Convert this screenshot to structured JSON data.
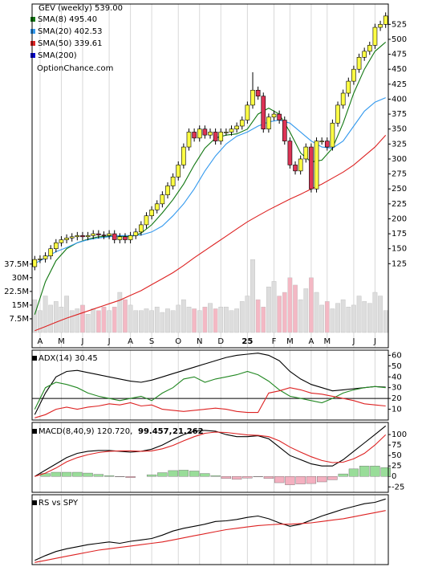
{
  "chart_data": [
    {
      "type": "candlestick",
      "title": "GEV (weekly) 539.00",
      "watermark": "OptionChance.com",
      "xlim": [
        -0.5,
        66.5
      ],
      "open": [
        120,
        132,
        133,
        138,
        150,
        160,
        165,
        168,
        170,
        172,
        170,
        172,
        175,
        173,
        172,
        175,
        165,
        170,
        165,
        172,
        178,
        190,
        205,
        215,
        225,
        240,
        255,
        270,
        290,
        320,
        345,
        335,
        350,
        340,
        345,
        330,
        345,
        345,
        350,
        355,
        365,
        390,
        415,
        405,
        350,
        370,
        375,
        365,
        330,
        290,
        280,
        300,
        320,
        250,
        330,
        330,
        320,
        360,
        390,
        410,
        430,
        450,
        470,
        480,
        490,
        520,
        525
      ],
      "high": [
        138,
        139,
        144,
        156,
        166,
        171,
        174,
        176,
        178,
        178,
        178,
        181,
        181,
        179,
        181,
        181,
        176,
        176,
        178,
        184,
        196,
        211,
        221,
        231,
        246,
        261,
        276,
        296,
        326,
        351,
        351,
        356,
        356,
        351,
        351,
        351,
        351,
        356,
        361,
        371,
        396,
        445,
        421,
        411,
        376,
        381,
        381,
        371,
        336,
        296,
        306,
        326,
        326,
        336,
        336,
        336,
        366,
        396,
        416,
        436,
        456,
        476,
        486,
        496,
        526,
        531,
        545
      ],
      "low": [
        114,
        126,
        127,
        132,
        144,
        154,
        159,
        162,
        164,
        164,
        164,
        166,
        167,
        166,
        166,
        159,
        159,
        159,
        159,
        166,
        172,
        184,
        199,
        209,
        219,
        234,
        249,
        264,
        284,
        314,
        329,
        329,
        334,
        334,
        324,
        324,
        339,
        339,
        344,
        349,
        359,
        384,
        399,
        344,
        344,
        364,
        359,
        324,
        284,
        274,
        274,
        294,
        244,
        244,
        324,
        314,
        314,
        354,
        384,
        404,
        424,
        444,
        464,
        474,
        484,
        514,
        519
      ],
      "close": [
        132,
        133,
        138,
        150,
        160,
        165,
        168,
        170,
        172,
        170,
        172,
        175,
        173,
        172,
        175,
        165,
        170,
        165,
        172,
        178,
        190,
        205,
        215,
        225,
        240,
        255,
        270,
        290,
        320,
        345,
        335,
        350,
        340,
        345,
        330,
        345,
        345,
        350,
        355,
        365,
        390,
        415,
        405,
        350,
        370,
        375,
        365,
        330,
        290,
        280,
        300,
        320,
        250,
        330,
        330,
        320,
        360,
        390,
        410,
        430,
        450,
        470,
        480,
        490,
        520,
        525,
        539
      ],
      "up_color": "#ffff44",
      "down_color": "#dd3355",
      "ylim": [
        10,
        559
      ],
      "yticks": [
        525,
        500,
        475,
        450,
        425,
        400,
        375,
        350,
        325,
        300,
        275,
        250,
        225,
        200,
        175,
        150,
        125
      ],
      "xticks": [
        {
          "value": 1,
          "label": "A"
        },
        {
          "value": 5,
          "label": "M"
        },
        {
          "value": 9,
          "label": "J"
        },
        {
          "value": 14,
          "label": "J"
        },
        {
          "value": 18,
          "label": "A"
        },
        {
          "value": 22,
          "label": "S"
        },
        {
          "value": 27,
          "label": "O"
        },
        {
          "value": 31,
          "label": "N"
        },
        {
          "value": 35,
          "label": "D"
        },
        {
          "value": 40,
          "label": "25"
        },
        {
          "value": 45,
          "label": "F"
        },
        {
          "value": 48,
          "label": "M"
        },
        {
          "value": 52,
          "label": "A"
        },
        {
          "value": 55,
          "label": "M"
        },
        {
          "value": 60,
          "label": "J"
        },
        {
          "value": 64,
          "label": "J"
        }
      ],
      "line_x": [
        0,
        2,
        4,
        6,
        8,
        10,
        12,
        14,
        16,
        18,
        20,
        22,
        24,
        26,
        28,
        30,
        32,
        34,
        36,
        38,
        40,
        42,
        44,
        46,
        48,
        50,
        52,
        54,
        56,
        58,
        60,
        62,
        64,
        66
      ],
      "series": [
        {
          "name": "SMA(8) 495.40",
          "color": "#117711",
          "values": [
            40,
            95,
            130,
            150,
            160,
            166,
            170,
            171,
            171,
            170,
            176,
            190,
            210,
            232,
            258,
            290,
            318,
            335,
            340,
            342,
            350,
            375,
            385,
            375,
            345,
            310,
            295,
            298,
            318,
            360,
            410,
            450,
            480,
            495.4
          ]
        },
        {
          "name": "SMA(20) 402.53",
          "color": "#3399ee",
          "values": [
            125,
            135,
            145,
            152,
            160,
            165,
            168,
            170,
            172,
            172,
            173,
            178,
            188,
            205,
            225,
            250,
            280,
            305,
            325,
            338,
            345,
            355,
            362,
            365,
            360,
            345,
            330,
            320,
            318,
            330,
            355,
            380,
            395,
            402.53
          ]
        },
        {
          "name": "SMA(50) 339.61",
          "color": "#dd2222",
          "values": [
            13,
            20,
            27,
            34,
            40,
            46,
            52,
            58,
            64,
            72,
            80,
            90,
            100,
            110,
            122,
            135,
            147,
            159,
            171,
            183,
            195,
            205,
            215,
            224,
            233,
            241,
            250,
            258,
            268,
            278,
            290,
            305,
            320,
            339.61
          ]
        },
        {
          "name": "SMA(200)",
          "color": "#0000cc"
        }
      ],
      "volume": {
        "up_color": "#dddddd",
        "down_color": "#f4b8c4",
        "ylim": [
          0,
          180000000
        ],
        "yticks": [
          {
            "value": 37500000,
            "label": "37.5M"
          },
          {
            "value": 30000000,
            "label": "30M"
          },
          {
            "value": 22500000,
            "label": "22.5M"
          },
          {
            "value": 15000000,
            "label": "15M"
          },
          {
            "value": 7500000,
            "label": "7.5M"
          }
        ],
        "values": [
          18000000,
          12000000,
          20000000,
          15000000,
          17000000,
          14000000,
          20000000,
          12000000,
          13000000,
          15000000,
          10000000,
          13000000,
          12000000,
          14000000,
          12000000,
          14000000,
          22000000,
          18000000,
          15000000,
          12000000,
          12000000,
          13000000,
          12000000,
          14000000,
          11000000,
          13000000,
          12000000,
          15000000,
          18000000,
          14000000,
          13000000,
          12000000,
          14000000,
          16000000,
          13000000,
          14000000,
          14000000,
          12000000,
          13000000,
          17000000,
          20000000,
          40000000,
          18000000,
          14000000,
          25000000,
          28000000,
          20000000,
          22000000,
          30000000,
          26000000,
          18000000,
          24000000,
          30000000,
          22000000,
          15000000,
          17000000,
          13000000,
          16000000,
          18000000,
          14000000,
          15000000,
          20000000,
          17000000,
          16000000,
          22000000,
          20000000,
          12000000
        ]
      }
    },
    {
      "type": "line",
      "title": "ADX(14) 30.45",
      "xlim": [
        -0.5,
        66.5
      ],
      "ylim": [
        0,
        64
      ],
      "yticks": [
        60,
        50,
        40,
        30,
        20,
        10
      ],
      "threshold": 20,
      "x": [
        0,
        2,
        4,
        6,
        8,
        10,
        12,
        14,
        16,
        18,
        20,
        22,
        24,
        26,
        28,
        30,
        32,
        34,
        36,
        38,
        40,
        42,
        44,
        46,
        48,
        50,
        52,
        54,
        56,
        58,
        60,
        62,
        64,
        66
      ],
      "series": [
        {
          "color": "#000000",
          "values": [
            5,
            25,
            40,
            45,
            46,
            44,
            42,
            40,
            38,
            36,
            35,
            37,
            40,
            43,
            46,
            49,
            52,
            55,
            58,
            60,
            61,
            62,
            60,
            55,
            45,
            38,
            33,
            30,
            27,
            28,
            29,
            30,
            31,
            30.45
          ]
        },
        {
          "color": "#228822",
          "values": [
            10,
            30,
            35,
            33,
            30,
            25,
            22,
            20,
            18,
            20,
            22,
            18,
            25,
            30,
            38,
            40,
            35,
            38,
            40,
            42,
            45,
            42,
            36,
            28,
            22,
            20,
            18,
            16,
            20,
            25,
            28,
            30,
            31,
            30
          ]
        },
        {
          "color": "#dd2222",
          "values": [
            2,
            5,
            10,
            12,
            10,
            12,
            13,
            15,
            14,
            16,
            13,
            14,
            10,
            9,
            8,
            9,
            10,
            11,
            10,
            8,
            7,
            7,
            25,
            27,
            30,
            28,
            25,
            24,
            22,
            20,
            18,
            15,
            14,
            13
          ]
        }
      ]
    },
    {
      "type": "macd",
      "title": "MACD(8,40,9) 120.720,",
      "signal_label": "99.457,",
      "hist_label": "21.262",
      "xlim": [
        -0.5,
        66.5
      ],
      "ylim": [
        -36,
        127
      ],
      "yticks": [
        100,
        75,
        50,
        25,
        0,
        -25
      ],
      "x": [
        0,
        2,
        4,
        6,
        8,
        10,
        12,
        14,
        16,
        18,
        20,
        22,
        24,
        26,
        28,
        30,
        32,
        34,
        36,
        38,
        40,
        42,
        44,
        46,
        48,
        50,
        52,
        54,
        56,
        58,
        60,
        62,
        64,
        66
      ],
      "series": [
        {
          "color": "#000000",
          "values": [
            0,
            15,
            30,
            45,
            55,
            60,
            62,
            62,
            60,
            58,
            60,
            65,
            75,
            88,
            100,
            108,
            110,
            108,
            100,
            95,
            95,
            97,
            90,
            70,
            50,
            40,
            30,
            25,
            25,
            40,
            60,
            80,
            100,
            120.72
          ]
        },
        {
          "color": "#dd2222",
          "values": [
            0,
            8,
            20,
            35,
            45,
            52,
            57,
            60,
            61,
            61,
            60,
            61,
            66,
            74,
            85,
            95,
            103,
            106,
            105,
            102,
            99,
            98,
            95,
            85,
            70,
            58,
            47,
            38,
            33,
            34,
            42,
            55,
            75,
            99.457
          ]
        }
      ],
      "histogram": {
        "pos_color": "#99dd99",
        "neg_color": "#f4b0c0",
        "label_color": "#3355bb",
        "signal_color": "#dd2222",
        "values": [
          0,
          7,
          10,
          10,
          10,
          8,
          5,
          2,
          -1,
          -3,
          0,
          4,
          9,
          14,
          15,
          13,
          7,
          2,
          -5,
          -7,
          -4,
          -1,
          -5,
          -15,
          -20,
          -18,
          -17,
          -13,
          -8,
          6,
          18,
          25,
          25,
          21.262
        ]
      }
    },
    {
      "type": "line",
      "title": "RS vs SPY",
      "xlim": [
        -0.5,
        66.5
      ],
      "ylim": [
        0,
        100
      ],
      "x": [
        0,
        2,
        4,
        6,
        8,
        10,
        12,
        14,
        16,
        18,
        20,
        22,
        24,
        26,
        28,
        30,
        32,
        34,
        36,
        38,
        40,
        42,
        44,
        46,
        48,
        50,
        52,
        54,
        56,
        58,
        60,
        62,
        64,
        66
      ],
      "series": [
        {
          "color": "#000000",
          "values": [
            5,
            12,
            18,
            22,
            25,
            28,
            30,
            32,
            30,
            33,
            35,
            37,
            42,
            48,
            52,
            55,
            58,
            62,
            63,
            65,
            68,
            70,
            66,
            60,
            55,
            58,
            64,
            70,
            75,
            80,
            84,
            88,
            90,
            95
          ]
        },
        {
          "color": "#dd2222",
          "values": [
            2,
            5,
            8,
            11,
            14,
            17,
            20,
            22,
            24,
            26,
            28,
            30,
            32,
            35,
            38,
            41,
            44,
            47,
            50,
            52,
            54,
            56,
            57,
            58,
            58,
            59,
            60,
            62,
            64,
            66,
            69,
            72,
            75,
            78
          ]
        }
      ]
    }
  ]
}
